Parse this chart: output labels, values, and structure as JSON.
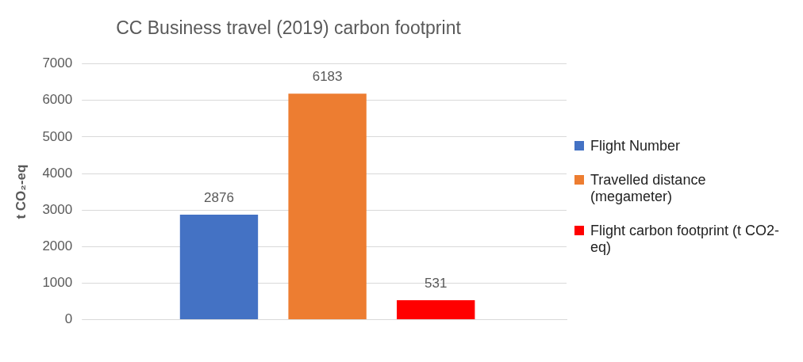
{
  "chart_data": {
    "type": "bar",
    "title": "CC Business travel (2019) carbon footprint",
    "ylabel": "t CO₂-eq",
    "categories": [
      null
    ],
    "series": [
      {
        "name": "Flight Number",
        "color": "#4472c4",
        "values": [
          2876
        ]
      },
      {
        "name": "Travelled distance (megameter)",
        "color": "#ed7d31",
        "values": [
          6183
        ]
      },
      {
        "name": "Flight carbon footprint (t CO2-eq)",
        "color": "#ff0000",
        "values": [
          531
        ]
      }
    ],
    "ylim": [
      0,
      7000
    ],
    "yticks": [
      0,
      1000,
      2000,
      3000,
      4000,
      5000,
      6000,
      7000
    ],
    "grid": "y",
    "legend": "right",
    "data_labels": true
  }
}
